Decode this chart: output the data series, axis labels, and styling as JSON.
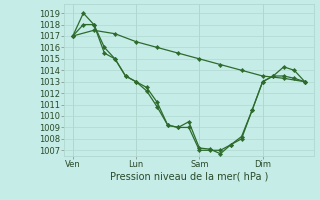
{
  "background_color": "#c5ece6",
  "grid_color": "#b0d8d0",
  "line_color": "#2d6b2d",
  "marker_color": "#2d6b2d",
  "ylabel_ticks": [
    1007,
    1008,
    1009,
    1010,
    1011,
    1012,
    1013,
    1014,
    1015,
    1016,
    1017,
    1018,
    1019
  ],
  "ylim": [
    1006.5,
    1019.8
  ],
  "xlabel": "Pression niveau de la mer( hPa )",
  "xtick_labels": [
    "Ven",
    "Lun",
    "Sam",
    "Dim"
  ],
  "xtick_positions": [
    0,
    36,
    72,
    108
  ],
  "vline_positions": [
    0,
    36,
    72,
    108
  ],
  "series": [
    {
      "x": [
        0,
        12,
        24,
        36,
        48,
        60,
        72,
        84,
        96,
        108,
        120,
        132
      ],
      "y": [
        1017.0,
        1017.5,
        1017.2,
        1016.5,
        1016.0,
        1015.5,
        1015.0,
        1014.5,
        1014.0,
        1013.5,
        1013.3,
        1013.0
      ]
    },
    {
      "x": [
        0,
        6,
        12,
        18,
        24,
        30,
        36,
        42,
        48,
        54,
        60,
        66,
        72,
        78,
        84,
        90,
        96,
        102,
        108,
        114,
        120,
        126,
        132
      ],
      "y": [
        1017.0,
        1019.0,
        1018.0,
        1016.0,
        1015.0,
        1013.5,
        1013.0,
        1012.2,
        1010.8,
        1009.2,
        1009.0,
        1009.5,
        1007.2,
        1007.1,
        1006.7,
        1007.5,
        1008.2,
        1010.5,
        1013.0,
        1013.5,
        1014.3,
        1014.0,
        1013.0
      ]
    },
    {
      "x": [
        0,
        6,
        12,
        18,
        24,
        30,
        36,
        42,
        48,
        54,
        60,
        66,
        72,
        78,
        84,
        90,
        96,
        102,
        108,
        114,
        120,
        126,
        132
      ],
      "y": [
        1017.0,
        1018.0,
        1018.0,
        1015.5,
        1015.0,
        1013.5,
        1013.0,
        1012.5,
        1011.2,
        1009.2,
        1009.0,
        1009.0,
        1007.0,
        1007.0,
        1007.0,
        1007.5,
        1008.0,
        1010.5,
        1013.0,
        1013.5,
        1013.5,
        1013.3,
        1013.0
      ]
    }
  ],
  "xlim": [
    -5,
    137
  ],
  "tick_fontsize": 6,
  "label_fontsize": 7,
  "linewidth": 0.9,
  "markersize": 2.2
}
